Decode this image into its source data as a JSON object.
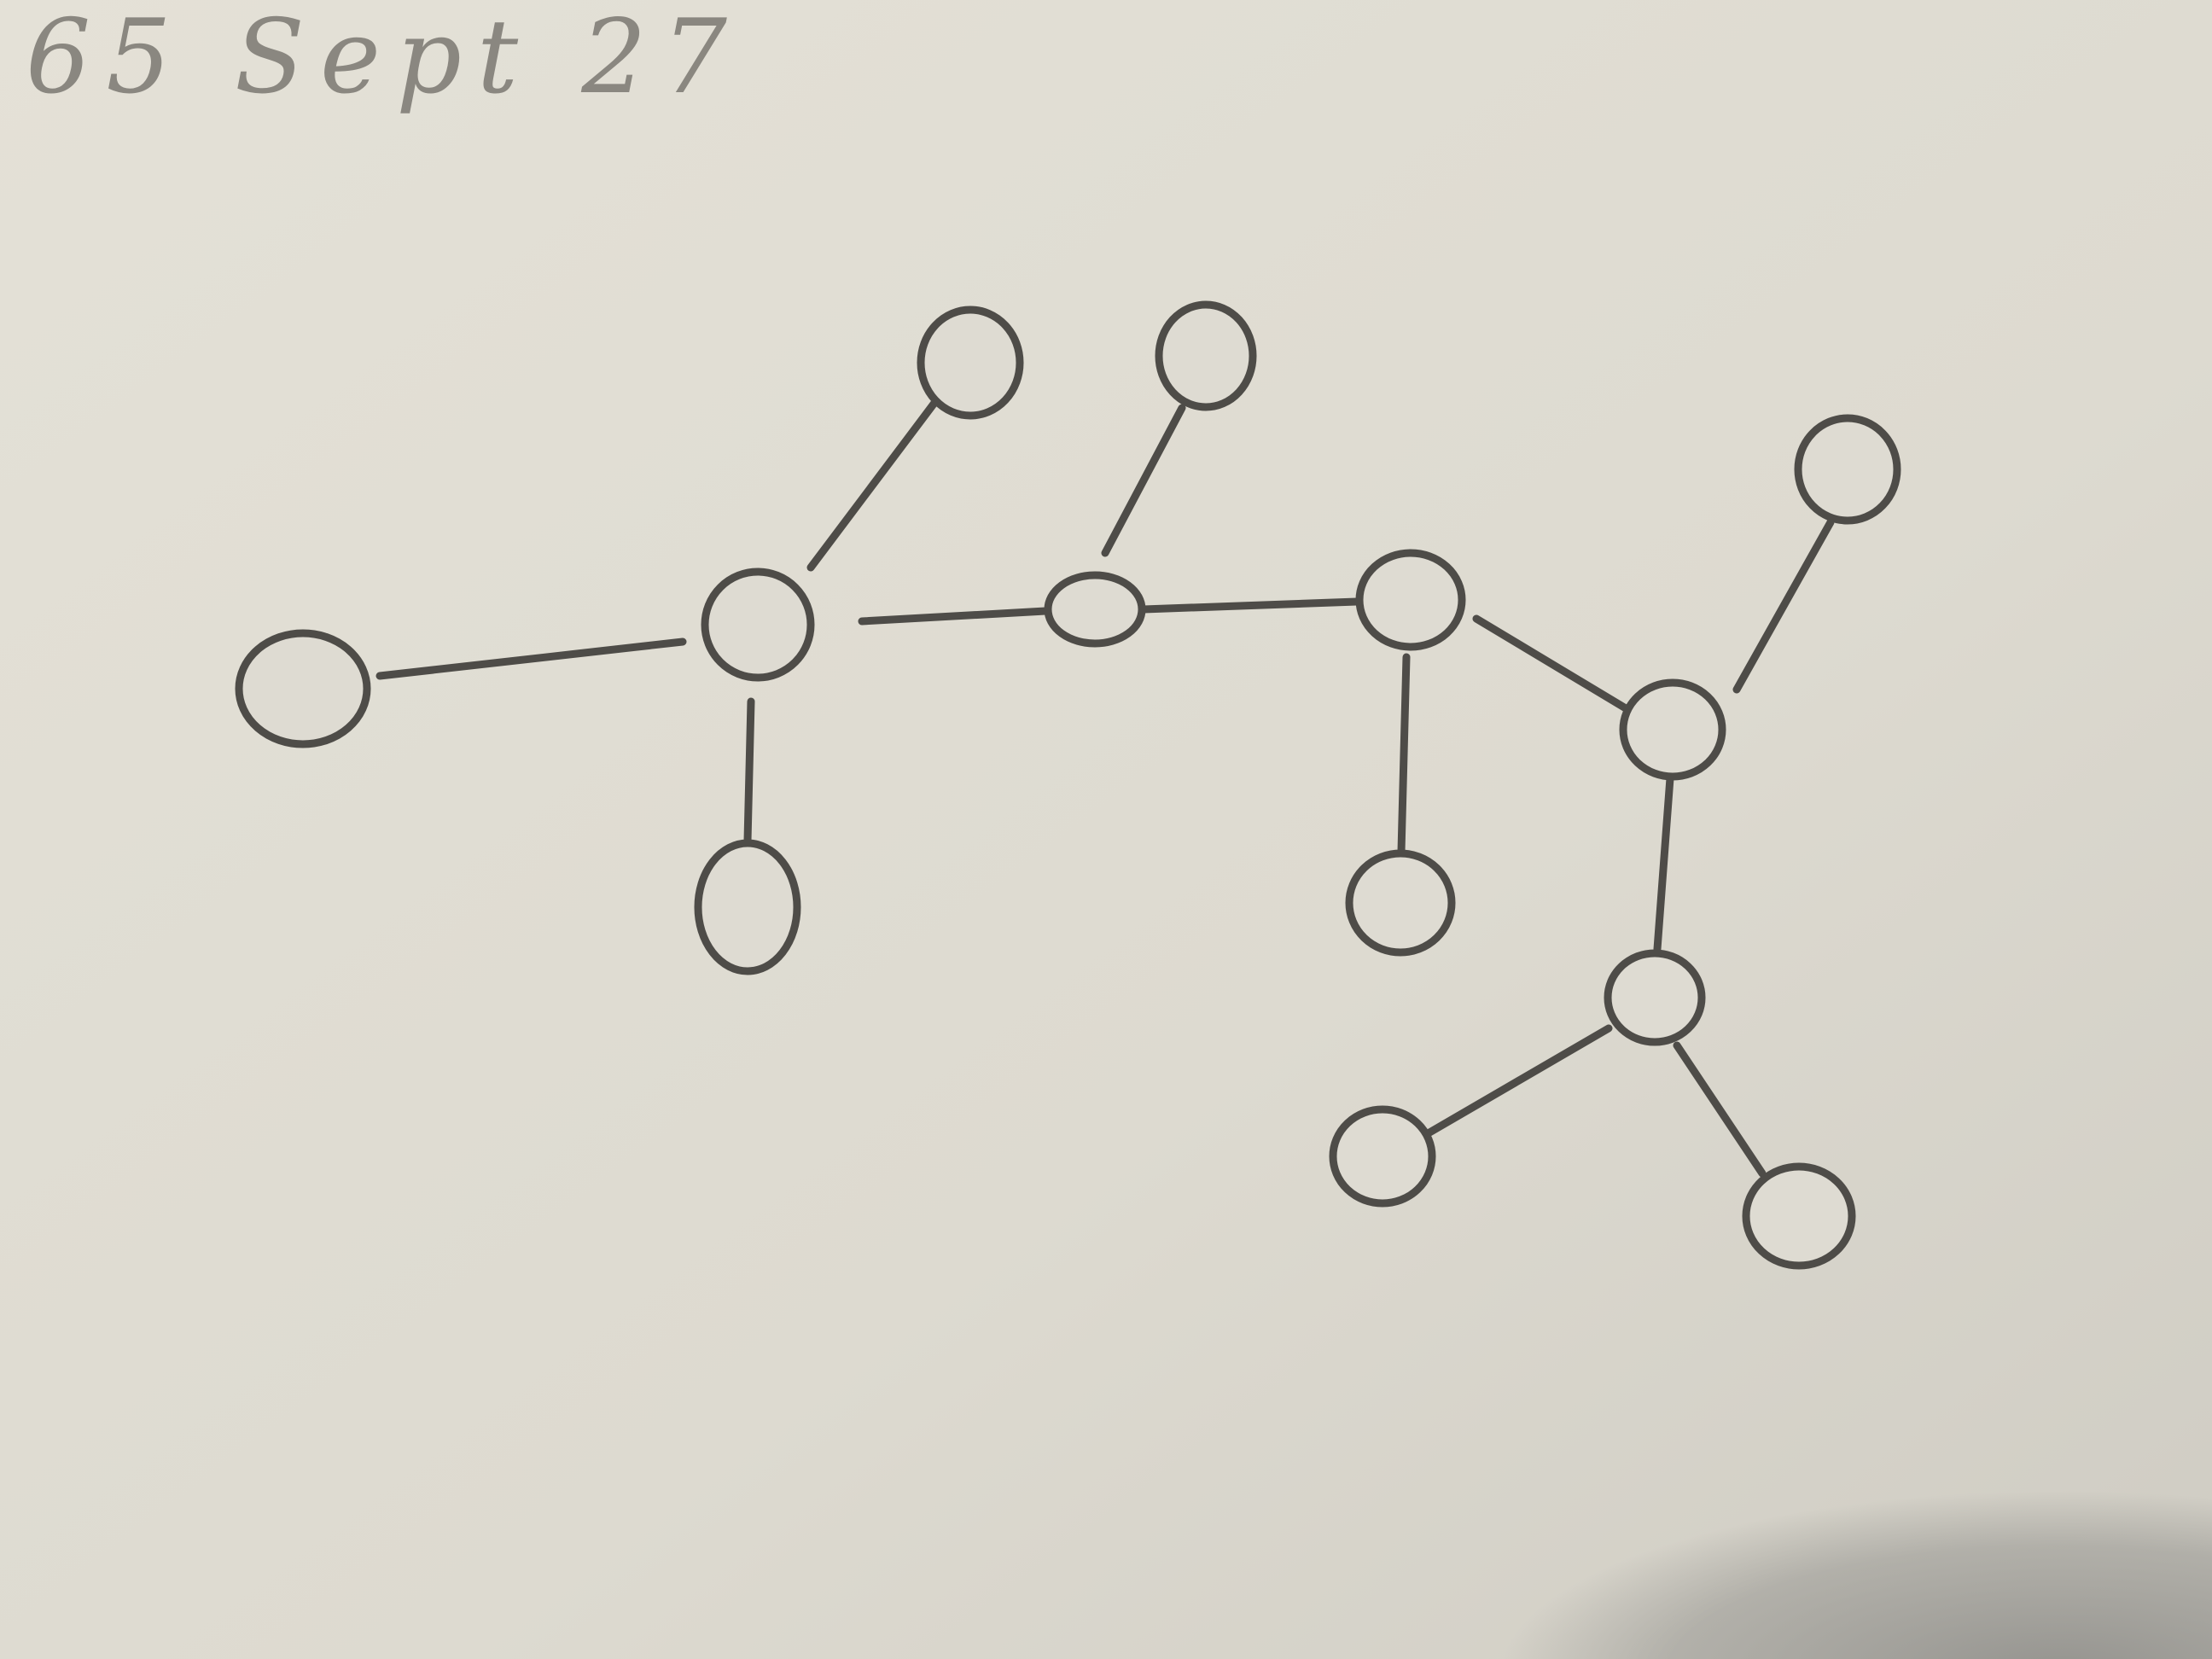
{
  "note": "65 Sept 27"
}
